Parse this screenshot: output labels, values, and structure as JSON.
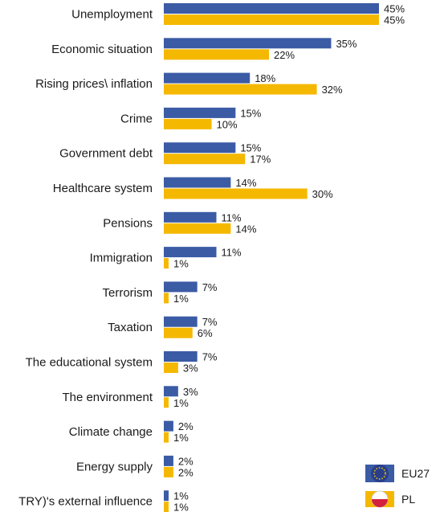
{
  "chart_data": {
    "type": "bar",
    "orientation": "horizontal",
    "categories": [
      "Unemployment",
      "Economic situation",
      "Rising prices\\ inflation",
      "Crime",
      "Government debt",
      "Healthcare system",
      "Pensions",
      "Immigration",
      "Terrorism",
      "Taxation",
      "The educational system",
      "The environment",
      "Climate change",
      "Energy supply",
      "TRY)'s external influence"
    ],
    "series": [
      {
        "name": "EU27",
        "color": "#3b5ba5",
        "values": [
          45,
          35,
          18,
          15,
          15,
          14,
          11,
          11,
          7,
          7,
          7,
          3,
          2,
          2,
          1
        ]
      },
      {
        "name": "PL",
        "color": "#f5b800",
        "values": [
          45,
          22,
          32,
          10,
          17,
          30,
          14,
          1,
          1,
          6,
          3,
          1,
          1,
          2,
          1
        ]
      }
    ],
    "value_suffix": "%",
    "xlim": [
      0,
      45
    ],
    "grid": false,
    "legend_position": "bottom-right",
    "legend": [
      {
        "label": "EU27",
        "icon": "eu-flag-icon"
      },
      {
        "label": "PL",
        "icon": "poland-flag-icon"
      }
    ]
  }
}
